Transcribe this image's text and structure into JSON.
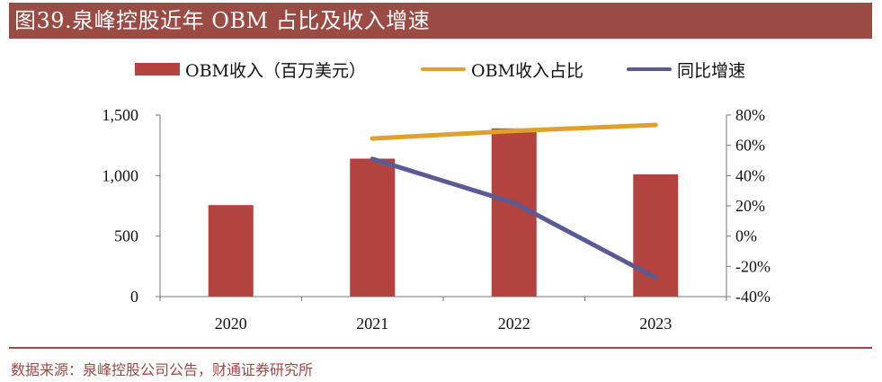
{
  "title": "图39.泉峰控股近年 OBM 占比及收入增速",
  "source": "数据来源：泉峰控股公司公告，财通证券研究所",
  "chart_data": {
    "type": "bar",
    "categories": [
      "2020",
      "2021",
      "2022",
      "2023"
    ],
    "series": [
      {
        "name": "OBM收入（百万美元）",
        "kind": "bar",
        "axis": "left",
        "color": "#b3433e",
        "values": [
          756,
          1140,
          1390,
          1010
        ]
      },
      {
        "name": "OBM收入占比",
        "kind": "line",
        "axis": "right",
        "color": "#e0a02a",
        "values": [
          null,
          0.645,
          0.695,
          0.735
        ]
      },
      {
        "name": "同比增速",
        "kind": "line",
        "axis": "right",
        "color": "#5a5b94",
        "values": [
          null,
          0.51,
          0.22,
          -0.275
        ]
      }
    ],
    "left_axis": {
      "ylim": [
        0,
        1500
      ],
      "ticks": [
        0,
        500,
        1000,
        1500
      ],
      "tick_labels": [
        "0",
        "500",
        "1,000",
        "1,500"
      ]
    },
    "right_axis": {
      "ylim": [
        -0.4,
        0.8
      ],
      "ticks": [
        -0.4,
        -0.2,
        0,
        0.2,
        0.4,
        0.6,
        0.8
      ],
      "tick_labels": [
        "-40%",
        "-20%",
        "0%",
        "20%",
        "40%",
        "60%",
        "80%"
      ]
    },
    "legend_position": "top"
  }
}
